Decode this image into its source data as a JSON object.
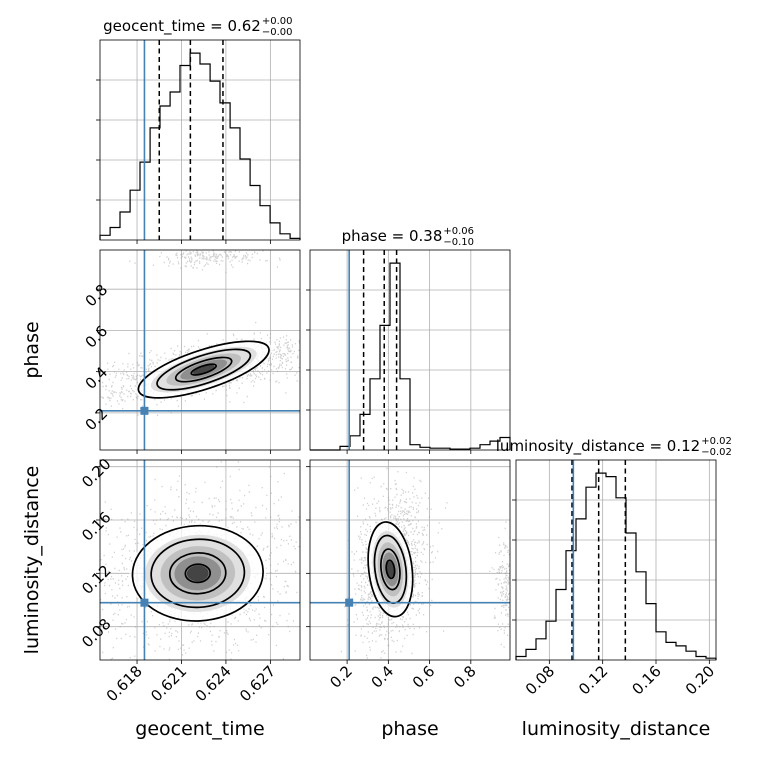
{
  "chart_data": {
    "type": "corner",
    "parameters": [
      "geocent_time",
      "phase",
      "luminosity_distance"
    ],
    "titles": [
      {
        "param": "geocent_time",
        "text": "geocent_time = 0.62",
        "upper": "+0.00",
        "lower": "−0.00"
      },
      {
        "param": "phase",
        "text": "phase = 0.38",
        "upper": "+0.06",
        "lower": "−0.10"
      },
      {
        "param": "luminosity_distance",
        "text": "luminosity_distance = 0.12",
        "upper": "+0.02",
        "lower": "−0.02"
      }
    ],
    "axis_ranges": {
      "geocent_time": [
        0.6155,
        0.629
      ],
      "phase": [
        0.02,
        0.99
      ],
      "luminosity_distance": [
        0.055,
        0.205
      ]
    },
    "ticks": {
      "geocent_time": [
        "0.618",
        "0.621",
        "0.624",
        "0.627"
      ],
      "phase": [
        "0.2",
        "0.4",
        "0.6",
        "0.8"
      ],
      "luminosity_distance": [
        "0.08",
        "0.12",
        "0.16",
        "0.20"
      ]
    },
    "truths": {
      "geocent_time": 0.6185,
      "phase": 0.21,
      "luminosity_distance": 0.098
    },
    "quantiles": {
      "geocent_time": [
        0.6195,
        0.6216,
        0.6238
      ],
      "phase": [
        0.28,
        0.38,
        0.44
      ],
      "luminosity_distance": [
        0.097,
        0.117,
        0.137
      ]
    },
    "histograms": {
      "geocent_time": {
        "edges": [
          0.6155,
          0.61618,
          0.61685,
          0.61753,
          0.6182,
          0.61888,
          0.61955,
          0.62023,
          0.6209,
          0.62158,
          0.62225,
          0.62293,
          0.6236,
          0.62428,
          0.62495,
          0.62563,
          0.6263,
          0.62698,
          0.62765,
          0.62833,
          0.629
        ],
        "counts": [
          3,
          8,
          18,
          32,
          50,
          72,
          86,
          95,
          112,
          120,
          113,
          102,
          88,
          72,
          52,
          35,
          22,
          11,
          4,
          1
        ]
      },
      "phase": {
        "edges": [
          0.02,
          0.0685,
          0.117,
          0.1655,
          0.214,
          0.2625,
          0.311,
          0.3595,
          0.408,
          0.4565,
          0.505,
          0.5535,
          0.602,
          0.6505,
          0.699,
          0.7475,
          0.796,
          0.8445,
          0.893,
          0.9415,
          0.99
        ],
        "counts": [
          0,
          0,
          0,
          4,
          16,
          40,
          80,
          140,
          210,
          80,
          6,
          3,
          2,
          2,
          1,
          1,
          2,
          6,
          10,
          14
        ]
      },
      "luminosity_distance": {
        "edges": [
          0.055,
          0.0625,
          0.07,
          0.0775,
          0.085,
          0.0925,
          0.1,
          0.1075,
          0.115,
          0.1225,
          0.13,
          0.1375,
          0.145,
          0.1525,
          0.16,
          0.1675,
          0.175,
          0.1825,
          0.19,
          0.1975,
          0.205
        ],
        "counts": [
          2,
          6,
          12,
          22,
          40,
          62,
          80,
          98,
          106,
          104,
          92,
          72,
          50,
          32,
          16,
          10,
          8,
          5,
          2,
          1
        ]
      }
    },
    "pairs": [
      {
        "x": "geocent_time",
        "y": "phase"
      },
      {
        "x": "geocent_time",
        "y": "luminosity_distance"
      },
      {
        "x": "phase",
        "y": "luminosity_distance"
      }
    ]
  }
}
